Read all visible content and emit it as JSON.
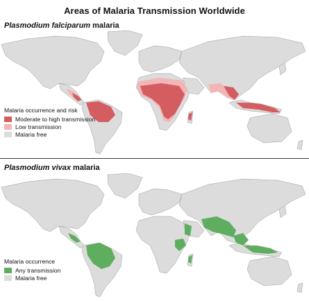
{
  "title": "Areas of Malaria Transmission Worldwide",
  "panels": [
    {
      "title_species": "Plasmodium falciparum",
      "title_rest": " malaria",
      "legend": {
        "heading": "Malaria occurrence and risk",
        "items": [
          {
            "label": "Moderate to high transmission",
            "color": "#d45d62"
          },
          {
            "label": "Low transmission",
            "color": "#f1b6b5"
          },
          {
            "label": "Malaria free",
            "color": "#dcdcdc"
          }
        ]
      }
    },
    {
      "title_species": "Plasmodium vivax",
      "title_rest": " malaria",
      "legend": {
        "heading": "Malaria occurrence",
        "items": [
          {
            "label": "Any transmission",
            "color": "#5fae5f"
          },
          {
            "label": "Malaria free",
            "color": "#dcdcdc"
          }
        ]
      }
    }
  ],
  "colors": {
    "land": "#dcdcdc",
    "border": "#9a9a9a",
    "falciparum_high": "#d45d62",
    "falciparum_low": "#f1b6b5",
    "vivax": "#5fae5f"
  }
}
